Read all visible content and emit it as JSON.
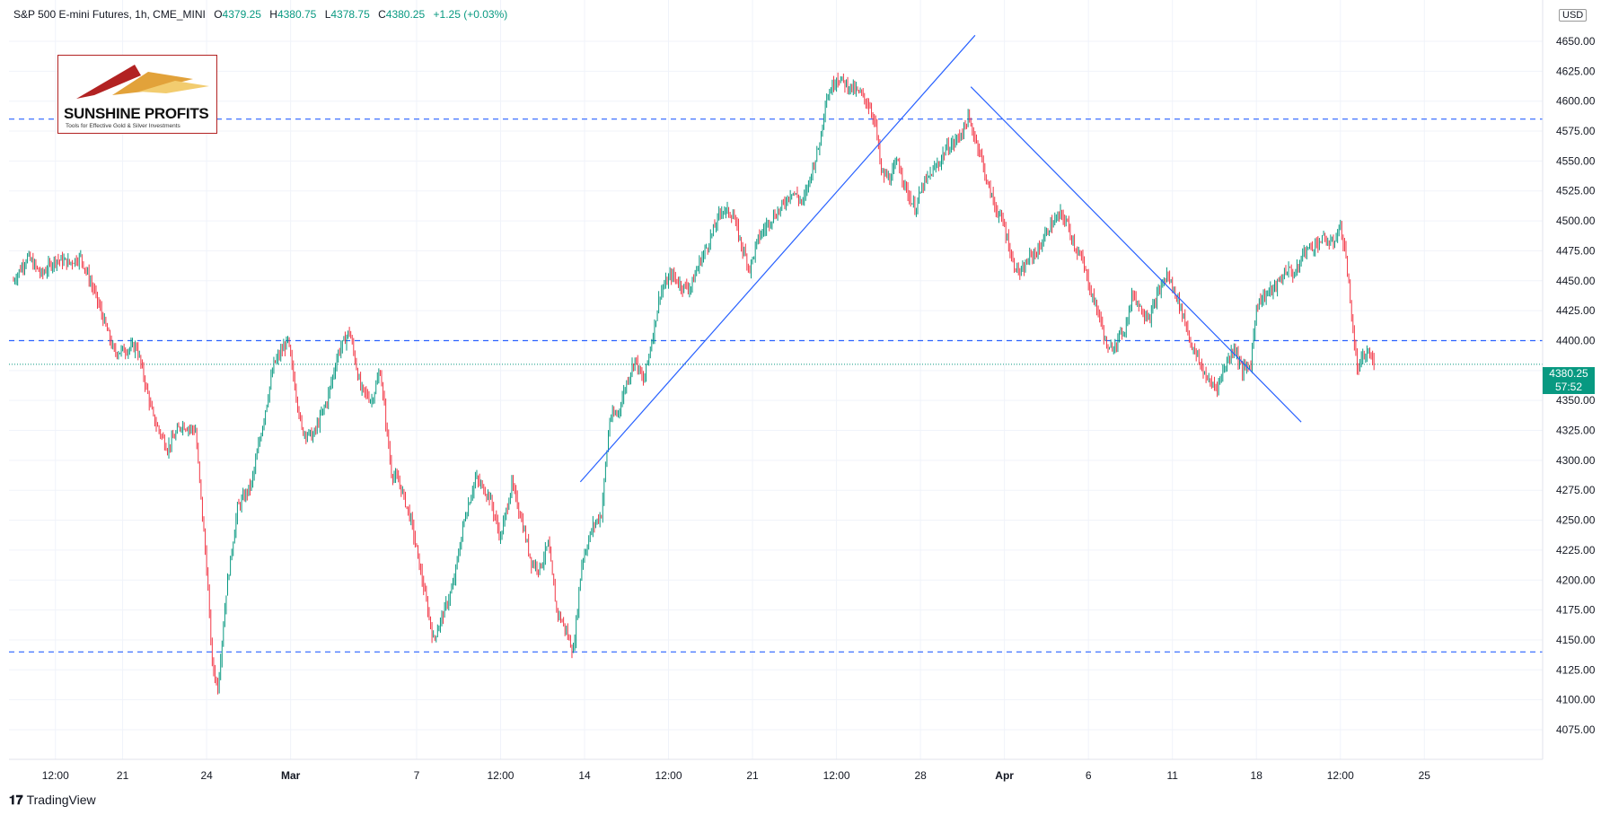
{
  "header": {
    "symbol": "S&P 500 E-mini Futures, 1h, CME_MINI",
    "open_label": "O",
    "open_value": "4379.25",
    "high_label": "H",
    "high_value": "4380.75",
    "low_label": "L",
    "low_value": "4378.75",
    "close_label": "C",
    "close_value": "4380.25",
    "change": "+1.25 (+0.03%)"
  },
  "currency": "USD",
  "logo": {
    "name": "SUNSHINE PROFITS",
    "tagline": "Tools for Effective Gold & Silver Investments"
  },
  "branding": {
    "name": "TradingView"
  },
  "last_price": {
    "value": "4380.25",
    "countdown": "57:52"
  },
  "colors": {
    "up": "#089981",
    "down": "#f23645",
    "trendline": "#2962ff",
    "level": "#2962ff",
    "grid": "#f0f3fa"
  },
  "chart_data": {
    "type": "candlestick",
    "interval": "1h",
    "ylim": [
      4062,
      4675
    ],
    "y_ticks": [
      4075,
      4100,
      4125,
      4150,
      4175,
      4200,
      4225,
      4250,
      4275,
      4300,
      4325,
      4350,
      4375,
      4400,
      4425,
      4450,
      4475,
      4500,
      4525,
      4550,
      4575,
      4600,
      4625,
      4650
    ],
    "y_tick_labels": [
      "4075.00",
      "4100.00",
      "4125.00",
      "4150.00",
      "4175.00",
      "4200.00",
      "4225.00",
      "4250.00",
      "4275.00",
      "4300.00",
      "4325.00",
      "4350.00",
      "",
      "4400.00",
      "4425.00",
      "4450.00",
      "4475.00",
      "4500.00",
      "4525.00",
      "4550.00",
      "4575.00",
      "4600.00",
      "4625.00",
      "4650.00"
    ],
    "x_ticks": [
      "12:00",
      "21",
      "24",
      "Mar",
      "7",
      "12:00",
      "14",
      "12:00",
      "21",
      "12:00",
      "28",
      "Apr",
      "6",
      "11",
      "18",
      "12:00",
      "25"
    ],
    "x_tick_index": [
      30,
      78,
      138,
      198,
      288,
      348,
      408,
      468,
      528,
      588,
      648,
      708,
      768,
      828,
      888,
      948,
      1008
    ],
    "n_bars": 1020,
    "price_path": [
      [
        0,
        4450
      ],
      [
        10,
        4470
      ],
      [
        20,
        4455
      ],
      [
        30,
        4468
      ],
      [
        40,
        4465
      ],
      [
        48,
        4470
      ],
      [
        58,
        4440
      ],
      [
        72,
        4390
      ],
      [
        88,
        4395
      ],
      [
        100,
        4335
      ],
      [
        110,
        4310
      ],
      [
        120,
        4330
      ],
      [
        130,
        4325
      ],
      [
        138,
        4210
      ],
      [
        142,
        4130
      ],
      [
        146,
        4110
      ],
      [
        152,
        4190
      ],
      [
        160,
        4260
      ],
      [
        170,
        4280
      ],
      [
        178,
        4330
      ],
      [
        186,
        4380
      ],
      [
        196,
        4400
      ],
      [
        206,
        4325
      ],
      [
        214,
        4320
      ],
      [
        224,
        4350
      ],
      [
        232,
        4390
      ],
      [
        240,
        4408
      ],
      [
        248,
        4360
      ],
      [
        256,
        4350
      ],
      [
        262,
        4375
      ],
      [
        270,
        4290
      ],
      [
        276,
        4280
      ],
      [
        284,
        4250
      ],
      [
        292,
        4200
      ],
      [
        300,
        4150
      ],
      [
        308,
        4175
      ],
      [
        314,
        4195
      ],
      [
        322,
        4250
      ],
      [
        330,
        4285
      ],
      [
        340,
        4270
      ],
      [
        348,
        4235
      ],
      [
        356,
        4280
      ],
      [
        362,
        4255
      ],
      [
        370,
        4215
      ],
      [
        376,
        4210
      ],
      [
        382,
        4230
      ],
      [
        388,
        4175
      ],
      [
        394,
        4160
      ],
      [
        400,
        4140
      ],
      [
        406,
        4215
      ],
      [
        414,
        4245
      ],
      [
        420,
        4255
      ],
      [
        426,
        4335
      ],
      [
        432,
        4340
      ],
      [
        438,
        4365
      ],
      [
        444,
        4385
      ],
      [
        450,
        4365
      ],
      [
        456,
        4400
      ],
      [
        462,
        4440
      ],
      [
        470,
        4455
      ],
      [
        478,
        4445
      ],
      [
        484,
        4445
      ],
      [
        490,
        4465
      ],
      [
        496,
        4480
      ],
      [
        506,
        4510
      ],
      [
        514,
        4505
      ],
      [
        520,
        4480
      ],
      [
        526,
        4460
      ],
      [
        532,
        4485
      ],
      [
        540,
        4500
      ],
      [
        548,
        4510
      ],
      [
        556,
        4525
      ],
      [
        564,
        4515
      ],
      [
        570,
        4540
      ],
      [
        576,
        4565
      ],
      [
        580,
        4600
      ],
      [
        588,
        4620
      ],
      [
        594,
        4615
      ],
      [
        600,
        4610
      ],
      [
        606,
        4605
      ],
      [
        612,
        4595
      ],
      [
        616,
        4580
      ],
      [
        620,
        4540
      ],
      [
        626,
        4535
      ],
      [
        632,
        4550
      ],
      [
        638,
        4525
      ],
      [
        644,
        4510
      ],
      [
        650,
        4530
      ],
      [
        656,
        4540
      ],
      [
        662,
        4550
      ],
      [
        666,
        4560
      ],
      [
        672,
        4565
      ],
      [
        678,
        4575
      ],
      [
        682,
        4585
      ],
      [
        690,
        4560
      ],
      [
        696,
        4530
      ],
      [
        702,
        4510
      ],
      [
        708,
        4495
      ],
      [
        714,
        4465
      ],
      [
        720,
        4455
      ],
      [
        726,
        4470
      ],
      [
        732,
        4475
      ],
      [
        740,
        4495
      ],
      [
        748,
        4505
      ],
      [
        752,
        4500
      ],
      [
        758,
        4480
      ],
      [
        764,
        4465
      ],
      [
        770,
        4440
      ],
      [
        776,
        4420
      ],
      [
        782,
        4390
      ],
      [
        788,
        4400
      ],
      [
        794,
        4410
      ],
      [
        800,
        4440
      ],
      [
        806,
        4425
      ],
      [
        812,
        4420
      ],
      [
        818,
        4440
      ],
      [
        824,
        4455
      ],
      [
        830,
        4440
      ],
      [
        836,
        4420
      ],
      [
        842,
        4395
      ],
      [
        848,
        4380
      ],
      [
        854,
        4365
      ],
      [
        860,
        4362
      ],
      [
        866,
        4380
      ],
      [
        872,
        4395
      ],
      [
        878,
        4375
      ],
      [
        884,
        4380
      ],
      [
        888,
        4430
      ],
      [
        896,
        4440
      ],
      [
        902,
        4445
      ],
      [
        910,
        4460
      ],
      [
        916,
        4455
      ],
      [
        922,
        4475
      ],
      [
        930,
        4480
      ],
      [
        936,
        4485
      ],
      [
        942,
        4480
      ],
      [
        948,
        4495
      ],
      [
        952,
        4470
      ],
      [
        956,
        4420
      ],
      [
        960,
        4375
      ],
      [
        964,
        4385
      ],
      [
        968,
        4390
      ],
      [
        972,
        4380
      ]
    ],
    "horizontal_levels": [
      4585,
      4400,
      4140
    ],
    "current_price": 4380.25,
    "trendlines": [
      {
        "from": [
          405,
          4282
        ],
        "to": [
          687,
          4655
        ]
      },
      {
        "from": [
          684,
          4612
        ],
        "to": [
          920,
          4332
        ]
      }
    ]
  }
}
